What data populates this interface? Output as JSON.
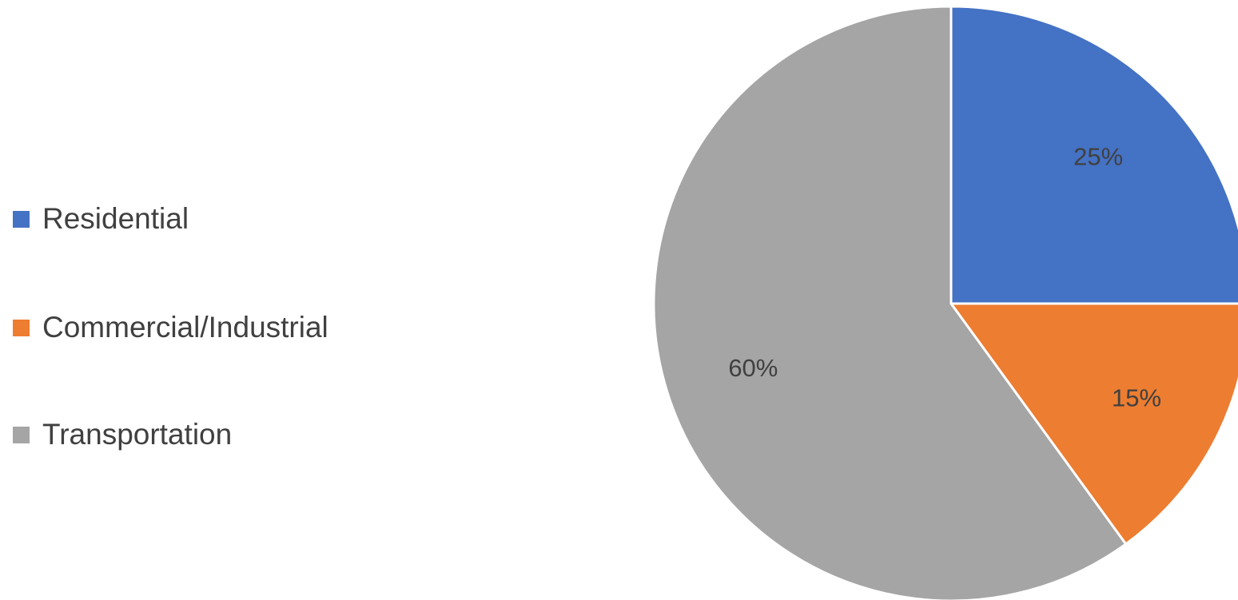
{
  "chart_data": {
    "type": "pie",
    "categories": [
      "Residential",
      "Commercial/Industrial",
      "Transportation"
    ],
    "values": [
      25,
      15,
      60
    ],
    "value_labels": [
      "25%",
      "15%",
      "60%"
    ],
    "colors": [
      "#4472c4",
      "#ed7d31",
      "#a5a5a5"
    ],
    "legend_position": "left"
  }
}
